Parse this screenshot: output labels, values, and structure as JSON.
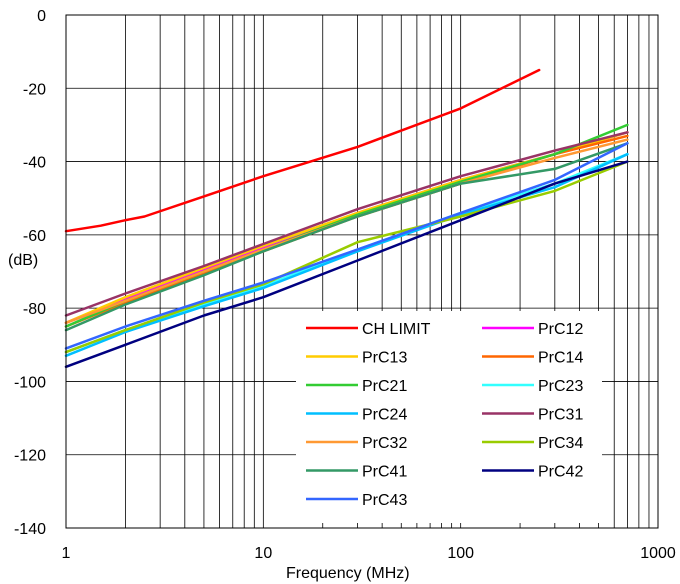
{
  "chart_data": {
    "type": "line",
    "title": "",
    "xlabel": "Frequency (MHz)",
    "ylabel": "(dB)",
    "x_scale": "log",
    "xlim": [
      1,
      1000
    ],
    "ylim": [
      -140,
      0
    ],
    "x_ticks": [
      1,
      10,
      100,
      1000
    ],
    "x_tick_labels": [
      "1",
      "10",
      "100",
      "1000"
    ],
    "y_ticks": [
      0,
      -20,
      -40,
      -60,
      -80,
      -100,
      -120,
      -140
    ],
    "y_tick_labels": [
      "0",
      "-20",
      "-40",
      "-60",
      "-80",
      "-100",
      "-120",
      "-140"
    ],
    "grid": true,
    "legend_position": "bottom-right",
    "series": [
      {
        "name": "CH LIMIT",
        "color": "#ff0000",
        "x": [
          1,
          1.5,
          2,
          2.5,
          5,
          10,
          30,
          100,
          250
        ],
        "y": [
          -59,
          -57.5,
          -56,
          -55,
          -49.5,
          -44,
          -36,
          -25.5,
          -15
        ]
      },
      {
        "name": "PrC12",
        "color": "#ff00ff",
        "x": [
          1,
          2,
          5,
          10,
          30,
          100,
          300,
          700
        ],
        "y": [
          -84,
          -77.5,
          -69.5,
          -63.5,
          -54,
          -45,
          -38,
          -32
        ]
      },
      {
        "name": "PrC13",
        "color": "#ffcc00",
        "x": [
          1,
          2,
          5,
          10,
          30,
          100,
          300,
          700
        ],
        "y": [
          -84,
          -77,
          -69,
          -63,
          -54,
          -45,
          -38,
          -32
        ]
      },
      {
        "name": "PrC14",
        "color": "#ff6600",
        "x": [
          1,
          2,
          5,
          10,
          30,
          100,
          300,
          700
        ],
        "y": [
          -85,
          -78.5,
          -70.5,
          -64.5,
          -55,
          -46,
          -38,
          -33
        ]
      },
      {
        "name": "PrC21",
        "color": "#33cc33",
        "x": [
          1,
          2,
          5,
          10,
          30,
          100,
          300,
          700
        ],
        "y": [
          -85,
          -78,
          -70,
          -64,
          -54.5,
          -45.5,
          -38,
          -30
        ]
      },
      {
        "name": "PrC23",
        "color": "#33ffff",
        "x": [
          1,
          2,
          5,
          10,
          30,
          100,
          300,
          700
        ],
        "y": [
          -92,
          -86,
          -79,
          -74,
          -64,
          -54,
          -46,
          -38
        ]
      },
      {
        "name": "PrC24",
        "color": "#00bfff",
        "x": [
          1,
          2,
          5,
          10,
          30,
          100,
          300,
          700
        ],
        "y": [
          -93,
          -86.5,
          -79.5,
          -74.5,
          -64.5,
          -54.5,
          -47,
          -38
        ]
      },
      {
        "name": "PrC31",
        "color": "#993366",
        "x": [
          1,
          2,
          5,
          10,
          30,
          100,
          300,
          700
        ],
        "y": [
          -82,
          -76,
          -68.5,
          -62.5,
          -53,
          -44,
          -37,
          -32
        ]
      },
      {
        "name": "PrC32",
        "color": "#ff9933",
        "x": [
          1,
          2,
          5,
          10,
          30,
          100,
          300,
          700
        ],
        "y": [
          -84,
          -78,
          -70,
          -64,
          -55,
          -46,
          -39,
          -34
        ]
      },
      {
        "name": "PrC34",
        "color": "#99cc00",
        "x": [
          1,
          2,
          5,
          10,
          30,
          100,
          300,
          700
        ],
        "y": [
          -92,
          -86,
          -78.5,
          -73.5,
          -62,
          -55,
          -48,
          -40
        ]
      },
      {
        "name": "PrC41",
        "color": "#339966",
        "x": [
          1,
          2,
          5,
          10,
          30,
          100,
          300,
          700
        ],
        "y": [
          -86,
          -79,
          -71,
          -64.5,
          -55,
          -46,
          -42,
          -35
        ]
      },
      {
        "name": "PrC42",
        "color": "#000080",
        "x": [
          1,
          2,
          5,
          10,
          30,
          100,
          300,
          700
        ],
        "y": [
          -96,
          -90,
          -82,
          -77,
          -67,
          -56,
          -46,
          -40
        ]
      },
      {
        "name": "PrC43",
        "color": "#3366ff",
        "x": [
          1,
          2,
          5,
          10,
          30,
          100,
          300,
          700
        ],
        "y": [
          -91,
          -85,
          -78,
          -73,
          -64,
          -54,
          -45,
          -35
        ]
      }
    ]
  }
}
